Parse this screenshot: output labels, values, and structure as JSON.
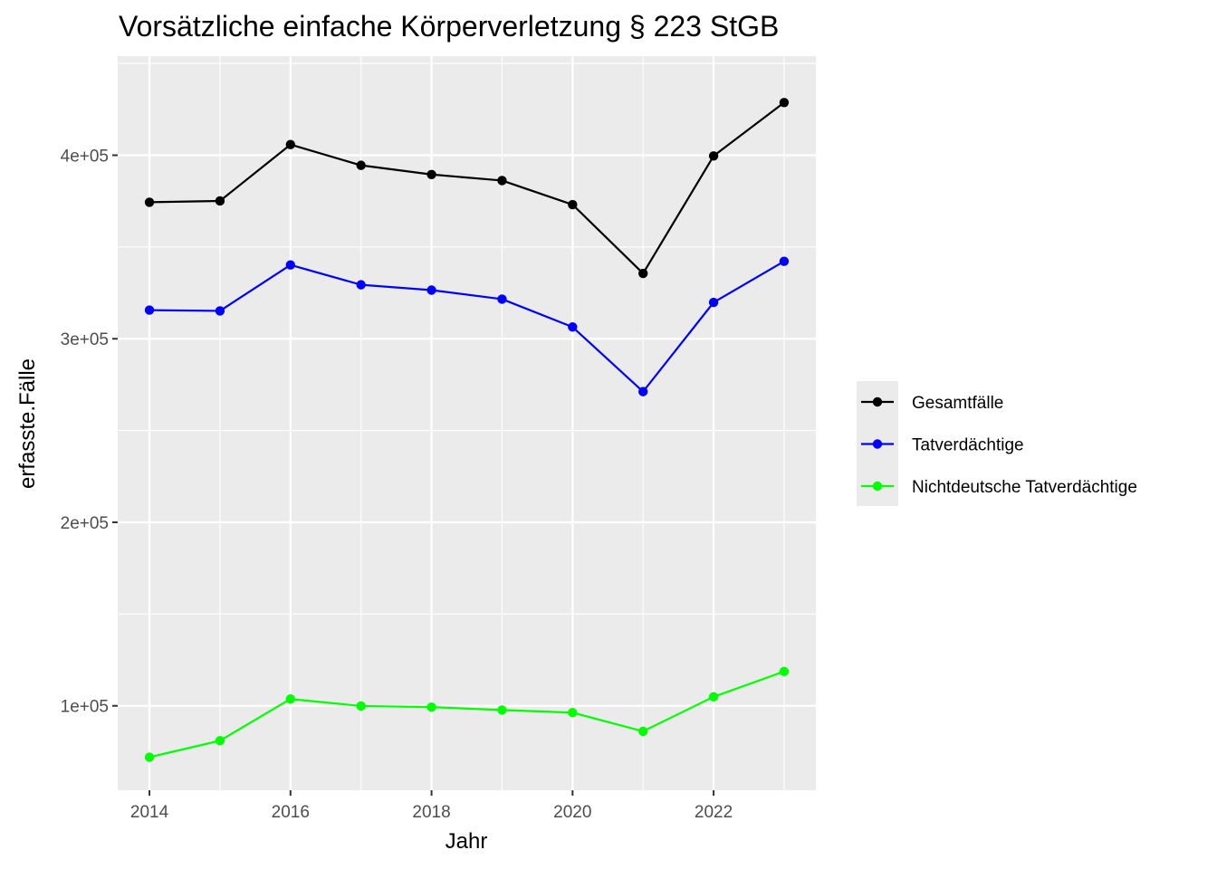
{
  "chart_data": {
    "type": "line",
    "title": "Vorsätzliche einfache Körperverletzung § 223 StGB",
    "xlabel": "Jahr",
    "ylabel": "erfasste.Fälle",
    "x": [
      2014,
      2015,
      2016,
      2017,
      2018,
      2019,
      2020,
      2021,
      2022,
      2023
    ],
    "xlim": [
      2013.55,
      2023.45
    ],
    "ylim": [
      54000,
      454000
    ],
    "x_ticks": [
      2014,
      2016,
      2018,
      2020,
      2022
    ],
    "x_tick_labels": [
      "2014",
      "2016",
      "2018",
      "2020",
      "2022"
    ],
    "y_ticks": [
      100000,
      200000,
      300000,
      400000
    ],
    "y_tick_labels": [
      "1e+05",
      "2e+05",
      "3e+05",
      "4e+05"
    ],
    "grid": true,
    "panel_background": "#ebebeb",
    "legend_position": "right",
    "series": [
      {
        "name": "Gesamtfälle",
        "color": "#000000",
        "values": [
          374400,
          375100,
          405800,
          394500,
          389500,
          386200,
          373100,
          335600,
          399600,
          428700
        ]
      },
      {
        "name": "Tatverdächtige",
        "color": "#0000ff",
        "values": [
          315600,
          315200,
          340200,
          329400,
          326500,
          321600,
          306400,
          271200,
          319800,
          342200
        ]
      },
      {
        "name": "Nichtdeutsche Tatverdächtige",
        "color": "#00ff00",
        "values": [
          72000,
          81000,
          103700,
          99900,
          99300,
          97700,
          96300,
          86100,
          104900,
          118700
        ]
      }
    ]
  }
}
